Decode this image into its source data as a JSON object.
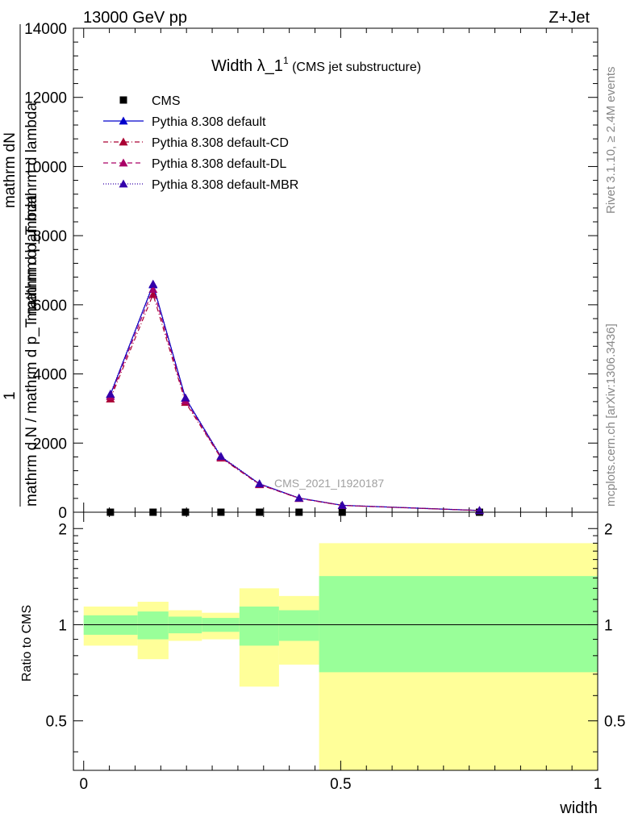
{
  "header": {
    "left": "13000 GeV pp",
    "right": "Z+Jet"
  },
  "side_texts": {
    "rivet": "Rivet 3.1.10, ≥ 2.4M events",
    "mcplots": "mcplots.cern.ch [arXiv:1306.3436]"
  },
  "chart_data": [
    {
      "type": "line",
      "title": "Width λ_1¹ (CMS jet substructure)",
      "title_main": "Width λ_1",
      "title_sup": "1",
      "title_sub": " (CMS jet substructure)",
      "watermark": "CMS_2021_I1920187",
      "ylabel_top": "mathrm dN",
      "ylabel_mid": "mathrm d p_T mathrm d lambda",
      "ylabel_one": "1",
      "ylabel_bottom": "mathrm d N / mathrm d p_T mathrm d lambda",
      "xlim": [
        -0.02,
        1.0
      ],
      "ylim": [
        0,
        14000
      ],
      "yticks": [
        0,
        2000,
        4000,
        6000,
        8000,
        10000,
        12000,
        14000
      ],
      "ytick_labels": [
        "0",
        "2000",
        "4000",
        "6000",
        "8000",
        "10000",
        "12000",
        "14000"
      ],
      "legend_position": "top-left",
      "x": [
        0.052,
        0.135,
        0.198,
        0.267,
        0.342,
        0.419,
        0.503,
        0.77
      ],
      "series": [
        {
          "name": "CMS",
          "color": "#000000",
          "marker": "square",
          "dash": "none",
          "values": [
            0,
            0,
            0,
            0,
            0,
            0,
            0,
            0
          ]
        },
        {
          "name": "Pythia 8.308 default",
          "color": "#0000cc",
          "marker": "triangle",
          "dash": "solid",
          "values": [
            3400,
            6580,
            3300,
            1600,
            820,
            410,
            200,
            50
          ]
        },
        {
          "name": "Pythia 8.308 default-CD",
          "color": "#aa0033",
          "marker": "triangle",
          "dash": "6,3,1,3",
          "values": [
            3280,
            6300,
            3180,
            1570,
            800,
            400,
            195,
            48
          ]
        },
        {
          "name": "Pythia 8.308 default-DL",
          "color": "#aa0066",
          "marker": "triangle",
          "dash": "6,4",
          "values": [
            3350,
            6450,
            3230,
            1590,
            810,
            405,
            198,
            49
          ]
        },
        {
          "name": "Pythia 8.308 default-MBR",
          "color": "#3300aa",
          "marker": "triangle",
          "dash": "1,2",
          "values": [
            3420,
            6600,
            3310,
            1620,
            825,
            412,
            202,
            51
          ]
        }
      ]
    },
    {
      "type": "area",
      "ylabel": "Ratio to CMS",
      "xlabel": "width",
      "xlim": [
        -0.02,
        1.0
      ],
      "ylim": [
        0.35,
        2.25
      ],
      "yticks": [
        0.5,
        1,
        2
      ],
      "ytick_labels": [
        "0.5",
        "1",
        "2"
      ],
      "xticks": [
        0,
        0.5,
        1
      ],
      "xtick_labels": [
        "0",
        "0.5",
        "1"
      ],
      "reference_line": 1,
      "bins": [
        {
          "lo": 0.0,
          "hi": 0.105,
          "green": [
            0.93,
            1.07
          ],
          "yellow": [
            0.86,
            1.14
          ]
        },
        {
          "lo": 0.105,
          "hi": 0.165,
          "green": [
            0.9,
            1.1
          ],
          "yellow": [
            0.78,
            1.18
          ]
        },
        {
          "lo": 0.165,
          "hi": 0.23,
          "green": [
            0.94,
            1.06
          ],
          "yellow": [
            0.89,
            1.11
          ]
        },
        {
          "lo": 0.23,
          "hi": 0.303,
          "green": [
            0.95,
            1.05
          ],
          "yellow": [
            0.9,
            1.09
          ]
        },
        {
          "lo": 0.303,
          "hi": 0.38,
          "green": [
            0.86,
            1.14
          ],
          "yellow": [
            0.64,
            1.3
          ]
        },
        {
          "lo": 0.38,
          "hi": 0.458,
          "green": [
            0.89,
            1.11
          ],
          "yellow": [
            0.75,
            1.23
          ]
        },
        {
          "lo": 0.458,
          "hi": 1.0,
          "green": [
            0.71,
            1.42
          ],
          "yellow": [
            0.35,
            1.8
          ]
        }
      ]
    }
  ]
}
